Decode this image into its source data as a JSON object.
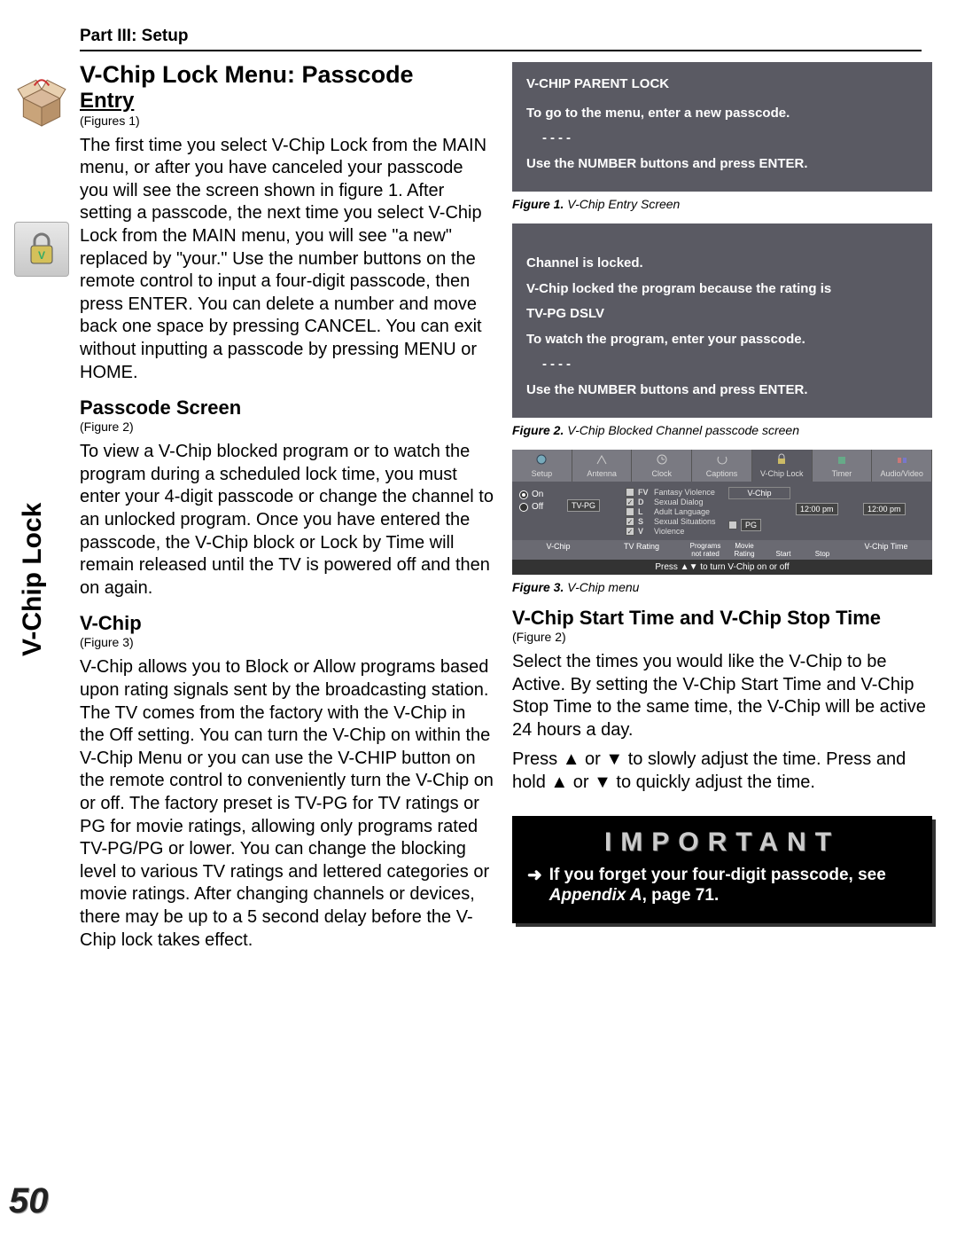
{
  "header": {
    "part": "Part III: Setup"
  },
  "sidebar": {
    "vertical_label": "V-Chip Lock",
    "page_number": "50"
  },
  "left": {
    "title_line1": "V-Chip Lock Menu: Passcode",
    "title_line2": "Entry",
    "title_figref": "(Figures 1)",
    "para1": "The first time you select V-Chip Lock from the MAIN menu, or after you have canceled your passcode you will see the screen shown in figure 1. After setting a passcode, the next time you select V-Chip Lock from the MAIN menu, you will see \"a new\" replaced by \"your.\" Use the number buttons on the remote control to input a four-digit passcode, then press ENTER. You can delete a number and move back one space by pressing CANCEL. You can exit without inputting a passcode by pressing MENU or HOME.",
    "h2a": "Passcode Screen",
    "h2a_figref": "(Figure 2)",
    "para2": "To view a V-Chip blocked program or to watch the program during a scheduled lock time, you must enter your 4-digit passcode or change the channel to an unlocked program. Once you have entered the passcode, the V-Chip block or Lock by Time will remain released until the TV is powered off and then on again.",
    "h2b": "V-Chip",
    "h2b_figref": "(Figure 3)",
    "para3": "V-Chip allows you to Block or Allow programs based upon rating signals sent by the broadcasting station. The TV comes from the factory with the V-Chip in the Off setting. You can turn the V-Chip on within the V-Chip Menu or you can use the V-CHIP button on the remote control to conveniently turn the V-Chip on or off. The factory preset is TV-PG for TV ratings or PG for movie ratings, allowing only programs rated TV-PG/PG or lower. You can change the blocking level to various TV ratings and lettered categories or movie ratings. After changing channels or devices, there may be up to a 5 second delay before the V-Chip lock takes effect."
  },
  "right": {
    "fig1": {
      "title": "V-CHIP PARENT LOCK",
      "line1": "To go to the menu, enter a new passcode.",
      "dashes": "----",
      "line2": "Use the NUMBER buttons and press ENTER.",
      "caption_bold": "Figure 1.",
      "caption_rest": " V-Chip Entry Screen"
    },
    "fig2": {
      "line1": "Channel is locked.",
      "line2": "V-Chip locked the program because the rating is",
      "line3": "TV-PG DSLV",
      "line4": "To watch the program, enter your passcode.",
      "dashes": "----",
      "line5": "Use the NUMBER buttons and press ENTER.",
      "caption_bold": "Figure 2.",
      "caption_rest": " V-Chip Blocked Channel passcode screen"
    },
    "fig3": {
      "tabs": [
        "Setup",
        "Antenna",
        "Clock",
        "Captions",
        "V-Chip Lock",
        "Timer",
        "Audio/Video"
      ],
      "col_vchip_h": "V-Chip",
      "on": "On",
      "off": "Off",
      "tvpg": "TV-PG",
      "cats": [
        {
          "code": "FV",
          "label": "Fantasy Violence",
          "checked": false
        },
        {
          "code": "D",
          "label": "Sexual Dialog",
          "checked": true
        },
        {
          "code": "L",
          "label": "Adult Language",
          "checked": false
        },
        {
          "code": "S",
          "label": "Sexual Situations",
          "checked": true
        },
        {
          "code": "V",
          "label": "Violence",
          "checked": true
        }
      ],
      "pg": "PG",
      "t1": "12:00 pm",
      "t2": "12:00 pm",
      "sub_labels_d": [
        "Programs not rated",
        "Movie Rating",
        "Start",
        "Stop"
      ],
      "bottom_labels": [
        "V-Chip",
        "TV Rating",
        "",
        "",
        "",
        "V-Chip Time"
      ],
      "footer": "Press ▲▼ to turn V-Chip on or off",
      "caption_bold": "Figure 3.",
      "caption_rest": " V-Chip menu"
    },
    "h2c": "V-Chip Start Time and V-Chip Stop Time",
    "h2c_figref": "(Figure 2)",
    "para4": "Select the times you would like the V-Chip to be Active. By setting the V-Chip Start Time and V-Chip Stop Time to the same time, the V-Chip will be active 24 hours a day.",
    "para5a": "Press ",
    "para5b": " or ",
    "para5c": " to slowly adjust the time. Press and hold ",
    "para5d": " or ",
    "para5e": " to quickly adjust the time.",
    "important": {
      "title": "IMPORTANT",
      "text1": "If you forget your four-digit passcode, see ",
      "text2": "Appendix A",
      "text3": ", page 71."
    }
  },
  "colors": {
    "panel_bg": "#5a5a63",
    "panel_text": "#ffffff",
    "page_bg": "#ffffff"
  }
}
